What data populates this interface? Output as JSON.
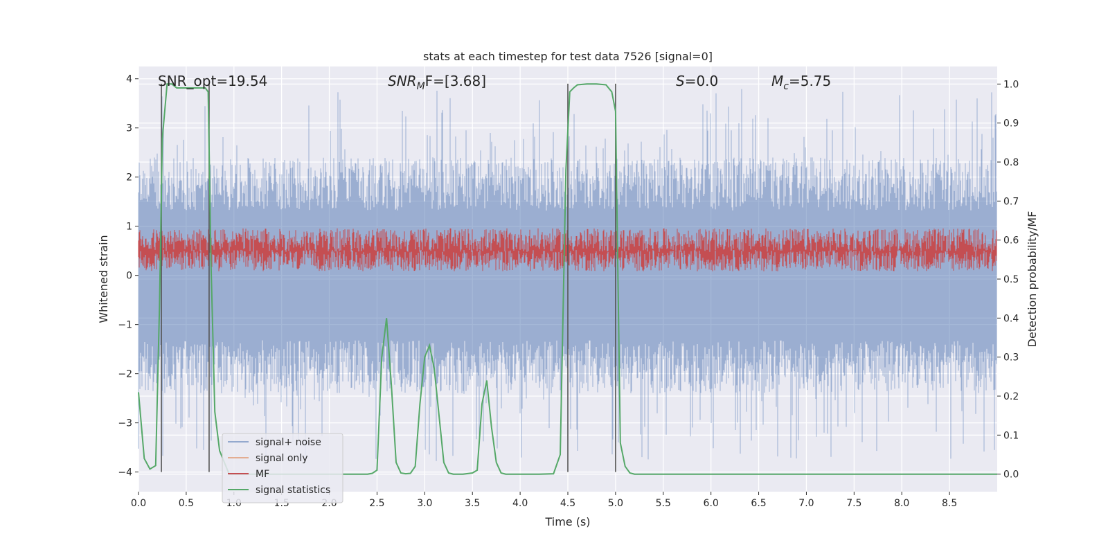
{
  "chart_data": {
    "type": "line",
    "title": "stats at each timestep for test data 7526 [signal=0]",
    "xlabel": "Time (s)",
    "ylabel_left": "Whitened strain",
    "ylabel_right": "Detection probability/MF",
    "xlim": [
      0.0,
      9.0
    ],
    "ylim_left": [
      -4.4,
      4.25
    ],
    "ylim_right": [
      -0.045,
      1.045
    ],
    "xticks": [
      "0.0",
      "0.5",
      "1.0",
      "1.5",
      "2.0",
      "2.5",
      "3.0",
      "3.5",
      "4.0",
      "4.5",
      "5.0",
      "5.5",
      "6.0",
      "6.5",
      "7.0",
      "7.5",
      "8.0",
      "8.5"
    ],
    "xtick_values": [
      0.0,
      0.5,
      1.0,
      1.5,
      2.0,
      2.5,
      3.0,
      3.5,
      4.0,
      4.5,
      5.0,
      5.5,
      6.0,
      6.5,
      7.0,
      7.5,
      8.0,
      8.5
    ],
    "yticks_left": [
      "−4",
      "−3",
      "−2",
      "−1",
      "0",
      "1",
      "2",
      "3",
      "4"
    ],
    "ytick_values_left": [
      -4,
      -3,
      -2,
      -1,
      0,
      1,
      2,
      3,
      4
    ],
    "yticks_right": [
      "0.0",
      "0.1",
      "0.2",
      "0.3",
      "0.4",
      "0.5",
      "0.6",
      "0.7",
      "0.8",
      "0.9",
      "1.0"
    ],
    "ytick_values_right": [
      0.0,
      0.1,
      0.2,
      0.3,
      0.4,
      0.5,
      0.6,
      0.7,
      0.8,
      0.9,
      1.0
    ],
    "annotations": {
      "snr_opt": "SNR_opt=19.54",
      "snr_mf_prefix": "SNR",
      "snr_mf_sub": "M",
      "snr_mf_suffix": "F=[3.68]",
      "s_prefix": "S",
      "s_value": "=0.0",
      "mc_prefix": "M",
      "mc_sub": "c",
      "mc_value": "=5.75"
    },
    "vertical_lines_x": [
      0.24,
      0.74,
      4.5,
      5.0
    ],
    "series": [
      {
        "name": "signal+ noise",
        "color": "#4c72b0",
        "description": "dense noise band, roughly -2.5 to 2.5 with spikes to about ±3.8",
        "band_min": -2.4,
        "band_max": 2.4,
        "spike_max": 3.8,
        "spike_min": -3.8
      },
      {
        "name": "signal only",
        "color": "#dd8452",
        "values": []
      },
      {
        "name": "MF",
        "color": "#c44e52",
        "description": "detection statistic on right axis, fluctuating between about 0.52 and 0.63",
        "band_min": 0.52,
        "band_max": 0.63
      },
      {
        "name": "signal statistics",
        "color": "#55a868",
        "x": [
          0.0,
          0.06,
          0.12,
          0.18,
          0.22,
          0.25,
          0.3,
          0.35,
          0.4,
          0.5,
          0.6,
          0.7,
          0.73,
          0.76,
          0.8,
          0.85,
          0.95,
          1.0,
          1.5,
          2.0,
          2.4,
          2.45,
          2.5,
          2.55,
          2.6,
          2.65,
          2.7,
          2.75,
          2.8,
          2.85,
          2.9,
          2.95,
          3.0,
          3.05,
          3.1,
          3.15,
          3.2,
          3.25,
          3.3,
          3.4,
          3.5,
          3.55,
          3.6,
          3.65,
          3.7,
          3.75,
          3.8,
          3.85,
          3.9,
          4.0,
          4.2,
          4.35,
          4.42,
          4.48,
          4.52,
          4.56,
          4.6,
          4.7,
          4.8,
          4.9,
          4.96,
          5.0,
          5.05,
          5.1,
          5.15,
          5.2,
          5.3,
          6.0,
          7.0,
          8.0,
          9.0
        ],
        "y": [
          0.21,
          0.04,
          0.013,
          0.022,
          0.43,
          0.86,
          1.0,
          1.0,
          0.99,
          0.99,
          0.99,
          0.99,
          0.98,
          0.54,
          0.16,
          0.06,
          0.0,
          0.0,
          0.0,
          0.0,
          0.0,
          0.002,
          0.01,
          0.3,
          0.4,
          0.23,
          0.03,
          0.003,
          0.001,
          0.002,
          0.02,
          0.18,
          0.3,
          0.33,
          0.27,
          0.15,
          0.03,
          0.003,
          0.0,
          0.0,
          0.003,
          0.01,
          0.18,
          0.24,
          0.12,
          0.03,
          0.003,
          0.0,
          0.0,
          0.0,
          0.0,
          0.001,
          0.05,
          0.78,
          0.98,
          0.99,
          0.998,
          1.0,
          1.0,
          0.998,
          0.98,
          0.93,
          0.08,
          0.02,
          0.003,
          0.0,
          0.0,
          0.0,
          0.0,
          0.0,
          0.0
        ]
      }
    ],
    "legend": [
      "signal+ noise",
      "signal only",
      "MF",
      "signal statistics"
    ],
    "legend_position": "lower-left",
    "grid": true
  }
}
